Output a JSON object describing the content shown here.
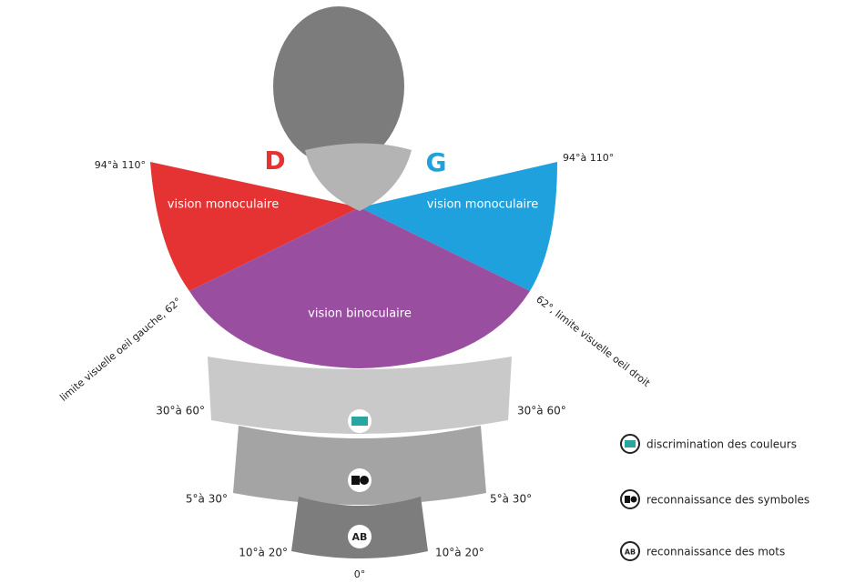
{
  "labels": {
    "right_eye": "D",
    "left_eye": "G",
    "limit_left_top": "94°à 110°",
    "limit_right_top": "94°à 110°",
    "monocular_left": "vision monoculaire",
    "monocular_right": "vision monoculaire",
    "binocular": "vision binoculaire",
    "limit_left_eye": "limite visuelle oeil gauche, 62°",
    "limit_right_eye": "62°, limite visuelle oeil droit",
    "band1_left": "30°à 60°",
    "band1_right": "30°à 60°",
    "band2_left": "5°à 30°",
    "band2_right": "5°à 30°",
    "band3_left": "10°à 20°",
    "band3_right": "10°à 20°",
    "center": "0°",
    "words_icon": "AB"
  },
  "legend": [
    "discrimination des couleurs",
    "reconnaissance des symboles",
    "reconnaissance des mots"
  ]
}
